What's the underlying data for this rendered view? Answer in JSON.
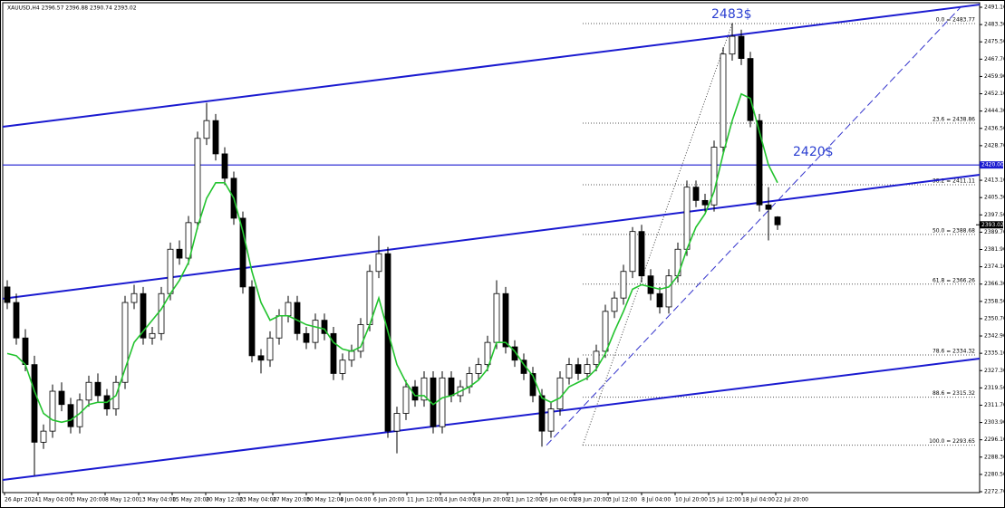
{
  "chart_data": {
    "type": "candlestick",
    "title": "XAUUSD,H4  2396.57 2396.88 2390.74 2393.02",
    "ylim": [
      2272.7,
      2491.1
    ],
    "yticks": [
      {
        "value": 2491.1,
        "label": "2491.10"
      },
      {
        "value": 2483.3,
        "label": "2483.30"
      },
      {
        "value": 2475.5,
        "label": "2475.50"
      },
      {
        "value": 2467.7,
        "label": "2467.70"
      },
      {
        "value": 2459.9,
        "label": "2459.90"
      },
      {
        "value": 2452.1,
        "label": "2452.10"
      },
      {
        "value": 2444.3,
        "label": "2444.30"
      },
      {
        "value": 2436.5,
        "label": "2436.50"
      },
      {
        "value": 2428.7,
        "label": "2428.70"
      },
      {
        "value": 2413.1,
        "label": "2413.10"
      },
      {
        "value": 2405.3,
        "label": "2405.30"
      },
      {
        "value": 2397.5,
        "label": "2397.50"
      },
      {
        "value": 2389.7,
        "label": "2389.70"
      },
      {
        "value": 2381.9,
        "label": "2381.90"
      },
      {
        "value": 2374.1,
        "label": "2374.10"
      },
      {
        "value": 2366.3,
        "label": "2366.30"
      },
      {
        "value": 2358.5,
        "label": "2358.50"
      },
      {
        "value": 2350.7,
        "label": "2350.70"
      },
      {
        "value": 2342.9,
        "label": "2342.90"
      },
      {
        "value": 2335.1,
        "label": "2335.10"
      },
      {
        "value": 2327.3,
        "label": "2327.30"
      },
      {
        "value": 2319.5,
        "label": "2319.50"
      },
      {
        "value": 2311.7,
        "label": "2311.70"
      },
      {
        "value": 2303.9,
        "label": "2303.90"
      },
      {
        "value": 2296.1,
        "label": "2296.10"
      },
      {
        "value": 2288.3,
        "label": "2288.30"
      },
      {
        "value": 2280.5,
        "label": "2280.50"
      },
      {
        "value": 2272.7,
        "label": "2272.70"
      }
    ],
    "xticks": [
      "26 Apr 2024",
      "1 May 04:00",
      "3 May 20:00",
      "8 May 12:00",
      "13 May 04:00",
      "15 May 20:00",
      "20 May 12:00",
      "23 May 04:00",
      "27 May 20:00",
      "30 May 12:00",
      "4 Jun 04:00",
      "6 Jun 20:00",
      "11 Jun 12:00",
      "14 Jun 04:00",
      "18 Jun 20:00",
      "21 Jun 12:00",
      "26 Jun 04:00",
      "28 Jun 20:00",
      "3 Jul 12:00",
      "8 Jul 04:00",
      "10 Jul 20:00",
      "15 Jul 12:00",
      "18 Jul 04:00",
      "22 Jul 20:00"
    ],
    "candles": {
      "open": [
        2365,
        2358,
        2342,
        2330,
        2295,
        2300,
        2318,
        2312,
        2302,
        2314,
        2322,
        2316,
        2310,
        2322,
        2358,
        2362,
        2342,
        2344,
        2362,
        2382,
        2378,
        2394,
        2432,
        2440,
        2425,
        2414,
        2396,
        2365,
        2334,
        2332,
        2342,
        2352,
        2358,
        2344,
        2340,
        2350,
        2344,
        2326,
        2332,
        2336,
        2348,
        2372,
        2380,
        2300,
        2308,
        2320,
        2314,
        2324,
        2302,
        2324,
        2316,
        2320,
        2326,
        2330,
        2340,
        2362,
        2338,
        2332,
        2326,
        2316,
        2300,
        2310,
        2324,
        2330,
        2326,
        2330,
        2336,
        2354,
        2360,
        2372,
        2390,
        2370,
        2362,
        2356,
        2370,
        2382,
        2410,
        2404,
        2402,
        2428,
        2470,
        2478,
        2468,
        2440,
        2402,
        2396.57
      ],
      "high": [
        2368,
        2362,
        2346,
        2334,
        2303,
        2321,
        2322,
        2315,
        2317,
        2325,
        2326,
        2319,
        2325,
        2361,
        2366,
        2365,
        2347,
        2365,
        2385,
        2386,
        2397,
        2435,
        2448,
        2443,
        2428,
        2417,
        2399,
        2368,
        2337,
        2345,
        2355,
        2361,
        2361,
        2347,
        2353,
        2353,
        2347,
        2335,
        2339,
        2351,
        2375,
        2388,
        2383,
        2311,
        2323,
        2323,
        2327,
        2327,
        2327,
        2327,
        2323,
        2329,
        2333,
        2343,
        2368,
        2365,
        2341,
        2335,
        2329,
        2319,
        2313,
        2327,
        2333,
        2333,
        2333,
        2339,
        2357,
        2363,
        2375,
        2392,
        2393,
        2373,
        2365,
        2373,
        2385,
        2413,
        2413,
        2407,
        2431,
        2473,
        2484,
        2481,
        2471,
        2443,
        2410,
        2396.88
      ],
      "low": [
        2355,
        2339,
        2327,
        2280,
        2292,
        2297,
        2309,
        2299,
        2299,
        2311,
        2313,
        2307,
        2307,
        2319,
        2355,
        2339,
        2339,
        2341,
        2359,
        2375,
        2375,
        2391,
        2429,
        2422,
        2411,
        2393,
        2362,
        2331,
        2326,
        2329,
        2339,
        2349,
        2341,
        2337,
        2337,
        2341,
        2323,
        2323,
        2329,
        2333,
        2345,
        2369,
        2297,
        2290,
        2305,
        2311,
        2311,
        2299,
        2299,
        2313,
        2313,
        2317,
        2323,
        2327,
        2337,
        2335,
        2329,
        2323,
        2313,
        2293,
        2297,
        2307,
        2321,
        2323,
        2323,
        2327,
        2333,
        2351,
        2357,
        2369,
        2367,
        2359,
        2353,
        2353,
        2367,
        2379,
        2401,
        2399,
        2399,
        2425,
        2467,
        2465,
        2437,
        2399,
        2386,
        2390.74
      ],
      "close": [
        2358,
        2342,
        2330,
        2295,
        2300,
        2318,
        2312,
        2302,
        2314,
        2322,
        2316,
        2310,
        2322,
        2358,
        2362,
        2342,
        2344,
        2362,
        2382,
        2378,
        2394,
        2432,
        2440,
        2425,
        2414,
        2396,
        2365,
        2334,
        2332,
        2342,
        2352,
        2358,
        2344,
        2340,
        2350,
        2344,
        2326,
        2332,
        2336,
        2348,
        2372,
        2380,
        2300,
        2308,
        2320,
        2314,
        2324,
        2302,
        2324,
        2316,
        2320,
        2326,
        2330,
        2340,
        2362,
        2338,
        2332,
        2326,
        2316,
        2300,
        2310,
        2324,
        2330,
        2326,
        2330,
        2336,
        2354,
        2360,
        2372,
        2390,
        2370,
        2362,
        2356,
        2370,
        2382,
        2410,
        2404,
        2402,
        2428,
        2470,
        2478,
        2468,
        2440,
        2402,
        2400,
        2393.02
      ]
    },
    "ma": {
      "color": "#22c32e",
      "values": [
        2335,
        2334,
        2330,
        2318,
        2308,
        2305,
        2304,
        2305,
        2308,
        2312,
        2313,
        2313,
        2316,
        2328,
        2340,
        2345,
        2350,
        2355,
        2362,
        2368,
        2376,
        2392,
        2405,
        2412,
        2412,
        2405,
        2390,
        2372,
        2358,
        2350,
        2352,
        2352,
        2350,
        2348,
        2347,
        2346,
        2340,
        2337,
        2336,
        2338,
        2348,
        2360,
        2345,
        2330,
        2322,
        2316,
        2316,
        2312,
        2315,
        2316,
        2318,
        2320,
        2323,
        2328,
        2340,
        2340,
        2336,
        2330,
        2325,
        2315,
        2313,
        2315,
        2320,
        2322,
        2324,
        2328,
        2335,
        2345,
        2354,
        2364,
        2366,
        2365,
        2364,
        2365,
        2370,
        2382,
        2392,
        2398,
        2408,
        2425,
        2440,
        2452,
        2450,
        2435,
        2420,
        2412
      ]
    },
    "channels": [
      {
        "color": "#1a1ad0",
        "start": 2437.2,
        "end": 2492.3
      },
      {
        "color": "#1a1ad0",
        "start": 2359.7,
        "end": 2415.6
      },
      {
        "color": "#1a1ad0",
        "start": 2278.0,
        "end": 2332.7
      }
    ],
    "trendline": {
      "start": 2293.65,
      "end": 2491.1
    },
    "fib_diagonal": {
      "start": 2293.65,
      "end": 2483.77
    },
    "fib_levels": [
      {
        "label": "0.0 = 2483.77",
        "value": 2483.77
      },
      {
        "label": "23.6 = 2438.86",
        "value": 2438.86
      },
      {
        "label": "38.2 = 2411.11",
        "value": 2411.11
      },
      {
        "label": "50.0 = 2388.68",
        "value": 2388.68
      },
      {
        "label": "61.8 = 2366.26",
        "value": 2366.26
      },
      {
        "label": "78.6 = 2334.32",
        "value": 2334.32
      },
      {
        "label": "88.6 = 2315.32",
        "value": 2315.32
      },
      {
        "label": "100.0 = 2293.65",
        "value": 2293.65
      }
    ],
    "hline": {
      "value": 2420,
      "label": "2420.00"
    },
    "price_marker": {
      "value": 2393.02,
      "label": "2393.02"
    },
    "annotations": [
      {
        "text": "2483$",
        "value": 2483
      },
      {
        "text": "2420$",
        "value": 2420
      }
    ]
  }
}
